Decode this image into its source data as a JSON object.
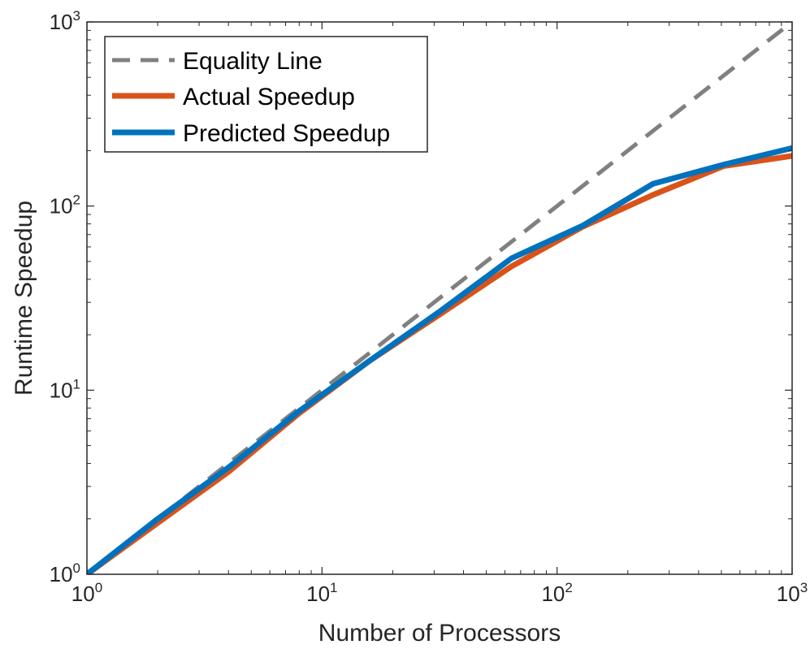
{
  "chart_data": {
    "type": "line",
    "title": "",
    "xlabel": "Number of Processors",
    "ylabel": "Runtime Speedup",
    "xscale": "log",
    "yscale": "log",
    "xlim": [
      1,
      1000
    ],
    "ylim": [
      1,
      1000
    ],
    "x_ticks": [
      {
        "value": 1,
        "base": "10",
        "exp": "0"
      },
      {
        "value": 10,
        "base": "10",
        "exp": "1"
      },
      {
        "value": 100,
        "base": "10",
        "exp": "2"
      },
      {
        "value": 1000,
        "base": "10",
        "exp": "3"
      }
    ],
    "y_ticks": [
      {
        "value": 1,
        "base": "10",
        "exp": "0"
      },
      {
        "value": 10,
        "base": "10",
        "exp": "1"
      },
      {
        "value": 100,
        "base": "10",
        "exp": "2"
      },
      {
        "value": 1000,
        "base": "10",
        "exp": "3"
      }
    ],
    "grid": false,
    "box": true,
    "legend_position": "top-left",
    "series": [
      {
        "name": "Equality Line",
        "color": "#808080",
        "style": "dashed",
        "x": [
          1,
          1000
        ],
        "y": [
          1,
          1000
        ]
      },
      {
        "name": "Actual Speedup",
        "color": "#D95319",
        "style": "solid",
        "x": [
          1,
          2,
          4,
          8,
          16,
          32,
          64,
          128,
          256,
          512,
          1024
        ],
        "y": [
          1,
          1.9,
          3.6,
          7.5,
          14.5,
          26,
          47,
          77,
          115,
          165,
          188
        ]
      },
      {
        "name": "Predicted Speedup",
        "color": "#0072BD",
        "style": "solid",
        "x": [
          1,
          2,
          4,
          8,
          16,
          32,
          64,
          128,
          256,
          512,
          1024
        ],
        "y": [
          1,
          2,
          3.8,
          7.7,
          14.5,
          27,
          52,
          78,
          132,
          168,
          208
        ]
      }
    ]
  }
}
